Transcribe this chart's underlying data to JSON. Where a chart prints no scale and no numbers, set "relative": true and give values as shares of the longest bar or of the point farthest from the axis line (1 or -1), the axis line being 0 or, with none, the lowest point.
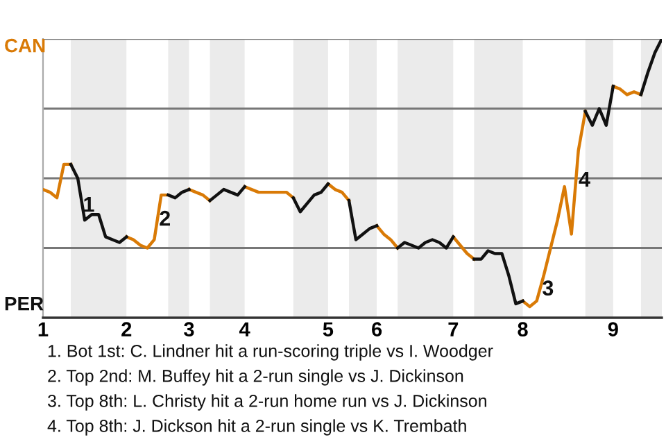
{
  "chart_data": {
    "type": "line",
    "relative": true,
    "categories": [
      "1",
      null,
      null,
      null,
      null,
      null,
      null,
      null,
      null,
      null,
      null,
      null,
      "2",
      null,
      null,
      null,
      null,
      null,
      null,
      null,
      null,
      "3",
      null,
      null,
      null,
      null,
      null,
      null,
      null,
      "4",
      null,
      null,
      null,
      null,
      null,
      null,
      null,
      null,
      null,
      null,
      null,
      "5",
      null,
      null,
      null,
      null,
      null,
      null,
      "6",
      null,
      null,
      null,
      null,
      null,
      null,
      null,
      null,
      null,
      null,
      "7",
      null,
      null,
      null,
      null,
      null,
      null,
      null,
      null,
      null,
      "8",
      null,
      null,
      null,
      null,
      null,
      null,
      null,
      null,
      null,
      null,
      null,
      null,
      "9",
      null,
      null,
      null,
      null,
      null,
      null,
      null
    ],
    "series": [
      {
        "color": "#d97a06",
        "values": [
          0.46,
          0.45,
          0.43,
          0.55,
          0.55,
          null,
          null,
          null,
          null,
          null,
          null,
          null,
          0.29,
          0.28,
          0.26,
          0.25,
          0.28,
          0.44,
          0.44,
          null,
          null,
          0.46,
          0.45,
          0.44,
          0.42,
          null,
          null,
          null,
          null,
          0.47,
          0.46,
          0.45,
          0.45,
          0.45,
          0.45,
          0.45,
          0.43,
          null,
          null,
          null,
          null,
          0.48,
          0.46,
          0.45,
          0.42,
          null,
          null,
          null,
          0.33,
          0.3,
          0.28,
          0.25,
          null,
          null,
          null,
          null,
          null,
          null,
          null,
          0.29,
          0.26,
          0.23,
          0.21,
          null,
          null,
          null,
          null,
          null,
          null,
          0.06,
          0.04,
          0.06,
          0.15,
          0.25,
          0.35,
          0.47,
          0.3,
          0.6,
          0.74,
          null,
          null,
          null,
          0.83,
          0.82,
          0.8,
          0.81,
          0.8,
          null,
          null,
          null
        ]
      },
      {
        "color": "#111111",
        "values": [
          null,
          null,
          null,
          null,
          0.55,
          0.5,
          0.35,
          0.37,
          0.37,
          0.29,
          0.28,
          0.27,
          0.29,
          null,
          null,
          null,
          null,
          null,
          0.44,
          0.43,
          0.45,
          0.46,
          null,
          null,
          0.42,
          0.44,
          0.46,
          0.45,
          0.44,
          0.47,
          null,
          null,
          null,
          null,
          null,
          null,
          0.43,
          0.38,
          0.41,
          0.44,
          0.45,
          0.48,
          null,
          null,
          0.42,
          0.28,
          0.3,
          0.32,
          0.33,
          null,
          null,
          0.25,
          0.27,
          0.26,
          0.25,
          0.27,
          0.28,
          0.27,
          0.25,
          0.29,
          null,
          null,
          0.21,
          0.21,
          0.24,
          0.23,
          0.23,
          0.15,
          0.05,
          0.06,
          null,
          null,
          null,
          null,
          null,
          null,
          null,
          null,
          0.74,
          0.69,
          0.75,
          0.69,
          0.83,
          null,
          null,
          null,
          0.8,
          0.88,
          0.95,
          1.0
        ]
      }
    ],
    "tick_labels": "x",
    "line_style": "solid",
    "marker": "none",
    "ref_lines": [
      {
        "axis": "y",
        "value": 0.25,
        "label": null,
        "color": "#777777"
      },
      {
        "axis": "y",
        "value": 0.5,
        "label": null,
        "color": "#777777"
      },
      {
        "axis": "y",
        "value": 0.75,
        "label": null,
        "color": "#777777"
      },
      {
        "axis": "y",
        "value": 1.0,
        "label": null,
        "color": "#777777"
      }
    ],
    "annotations": [
      "CAN",
      "PER",
      "1",
      "2",
      "3",
      "4",
      "1. Bot 1st: C. Lindner hit a run-scoring triple vs I. Woodger",
      "2. Top 2nd: M. Buffey hit a 2-run single vs J. Dickinson",
      "3. Top 8th: L. Christy hit a 2-run home run vs J. Dickinson",
      "4. Top 8th: J. Dickson hit a 2-run single vs K. Trembath"
    ]
  }
}
